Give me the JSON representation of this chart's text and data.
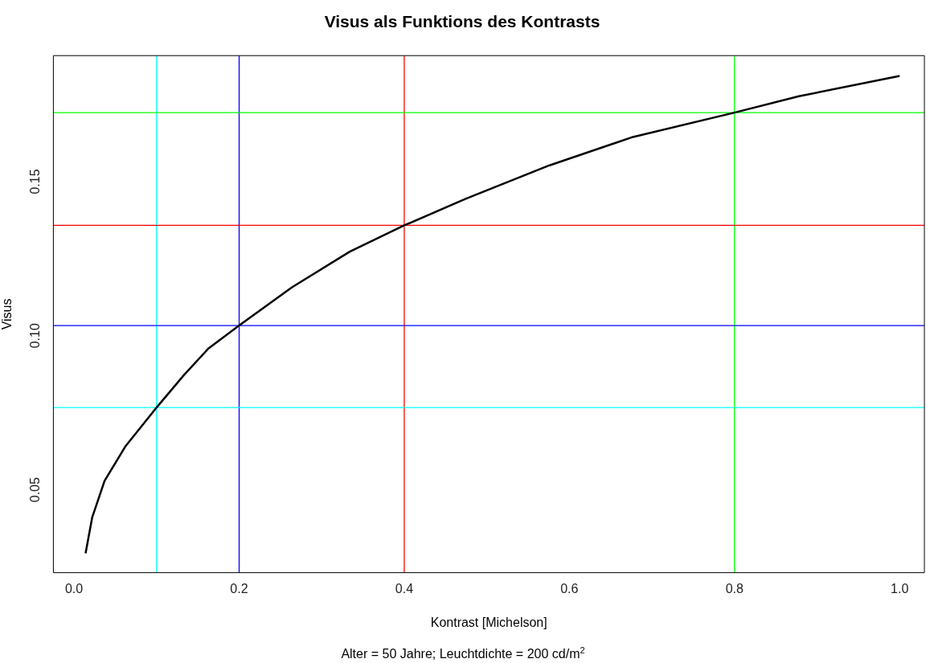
{
  "chart_data": {
    "type": "line",
    "title": "Visus als Funktions des Kontrasts",
    "xlabel": "Kontrast [Michelson]",
    "ylabel": "Visus",
    "annotations": [
      "Alter = 50 Jahre; Leuchtdichte = 200 cd/m$^{2}$"
    ],
    "x": [
      0.014,
      0.022,
      0.037,
      0.062,
      0.1,
      0.133,
      0.163,
      0.2,
      0.264,
      0.334,
      0.4,
      0.475,
      0.576,
      0.677,
      0.8,
      0.878,
      1.0
    ],
    "series": [
      {
        "color": "#000000",
        "values": [
          0.0294,
          0.041,
          0.0529,
          0.064,
          0.0767,
          0.0872,
          0.0959,
          0.1033,
          0.1157,
          0.1273,
          0.1358,
          0.1445,
          0.1553,
          0.1645,
          0.1724,
          0.1777,
          0.1843
        ]
      }
    ],
    "xlim": [
      -0.025,
      1.03
    ],
    "ylim": [
      0.0231,
      0.1909
    ],
    "xticks": [
      {
        "value": 0,
        "label": "0.0"
      },
      0.2,
      0.4,
      0.6,
      0.8,
      {
        "value": 1,
        "label": "1.0"
      }
    ],
    "yticks": [
      0.05,
      {
        "value": 0.1,
        "label": "0.10"
      },
      0.15
    ],
    "ref_lines": [
      {
        "axis": "x",
        "value": 0.1,
        "color": "#00ffff"
      },
      {
        "axis": "x",
        "value": 0.2,
        "color": "#0000ff"
      },
      {
        "axis": "x",
        "value": 0.4,
        "color": "#ff0000"
      },
      {
        "axis": "x",
        "value": 0.8,
        "color": "#00ff00"
      },
      {
        "axis": "y",
        "value": 0.0767,
        "color": "#00ffff"
      },
      {
        "axis": "y",
        "value": 0.1033,
        "color": "#0000ff"
      },
      {
        "axis": "y",
        "value": 0.1358,
        "color": "#ff0000"
      },
      {
        "axis": "y",
        "value": 0.1724,
        "color": "#00ff00"
      }
    ],
    "grid": false,
    "legend": false,
    "marker": "none",
    "line_style": "solid"
  }
}
